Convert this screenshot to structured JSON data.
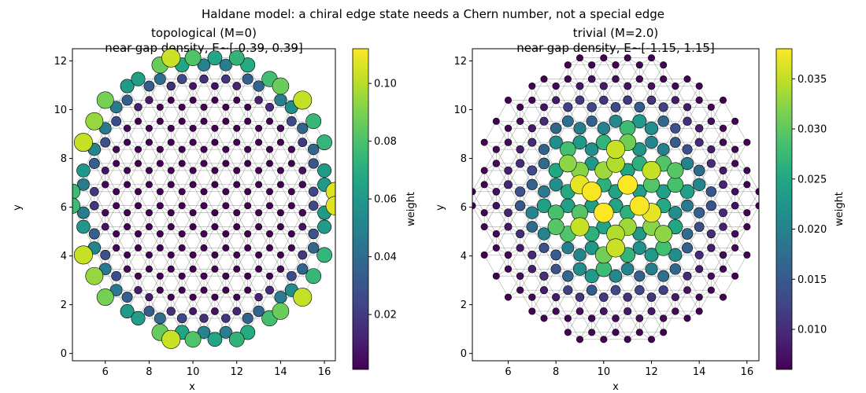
{
  "suptitle": "Haldane model: a chiral edge state needs a Chern number, not a special edge",
  "lattice": {
    "hex_lattice_constant": 1.0,
    "cluster_center": [
      10.5,
      6.35
    ],
    "cluster_radius": 6.1
  },
  "chart_data": [
    {
      "type": "scatter",
      "title_line1": "topological (M=0)",
      "title_line2": "near-gap density, E~[-0.39, 0.39]",
      "xlabel": "x",
      "ylabel": "y",
      "xlim": [
        4.5,
        16.5
      ],
      "ylim": [
        -0.3,
        12.5
      ],
      "xticks": [
        6,
        8,
        10,
        12,
        14,
        16
      ],
      "yticks": [
        0,
        2,
        4,
        6,
        8,
        10,
        12
      ],
      "colorbar": {
        "label": "weight",
        "min": 0.001,
        "max": 0.112,
        "ticks": [
          0.02,
          0.04,
          0.06,
          0.08,
          0.1
        ],
        "tick_labels": [
          "0.02",
          "0.04",
          "0.06",
          "0.08",
          "0.10"
        ]
      },
      "density_profile": "edge"
    },
    {
      "type": "scatter",
      "title_line1": "trivial (M=2.0)",
      "title_line2": "near-gap density, E~[-1.15, 1.15]",
      "xlabel": "x",
      "ylabel": "y",
      "xlim": [
        4.5,
        16.5
      ],
      "ylim": [
        -0.3,
        12.5
      ],
      "xticks": [
        6,
        8,
        10,
        12,
        14,
        16
      ],
      "yticks": [
        0,
        2,
        4,
        6,
        8,
        10,
        12
      ],
      "colorbar": {
        "label": "weight",
        "min": 0.006,
        "max": 0.038,
        "ticks": [
          0.01,
          0.015,
          0.02,
          0.025,
          0.03,
          0.035
        ],
        "tick_labels": [
          "0.010",
          "0.015",
          "0.020",
          "0.025",
          "0.030",
          "0.035"
        ]
      },
      "density_profile": "bulk"
    }
  ]
}
